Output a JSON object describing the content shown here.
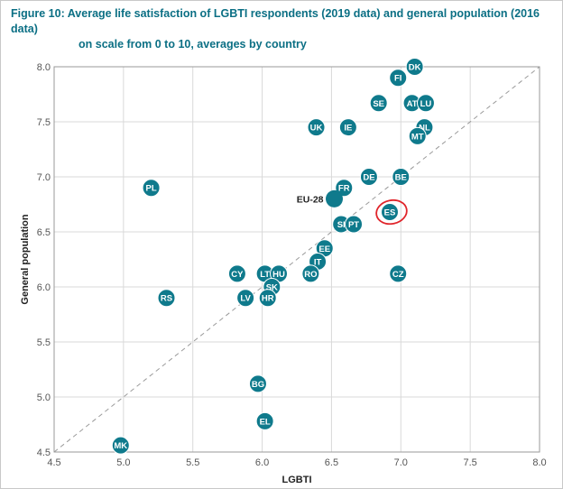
{
  "figure": {
    "title_line1": "Figure 10: Average life satisfaction of LGBTI respondents (2019 data) and general population (2016 data)",
    "title_line2": "on scale from 0 to 10, averages by country"
  },
  "colors": {
    "point": "#0f7a8c",
    "highlight": "#e0242a",
    "title": "#0b6f84",
    "grid": "#d9d9d9"
  },
  "chart_data": {
    "type": "scatter",
    "xlabel": "LGBTI",
    "ylabel": "General population",
    "xlim": [
      4.5,
      8.0
    ],
    "ylim": [
      4.5,
      8.0
    ],
    "xticks": [
      "4.5",
      "5.0",
      "5.5",
      "6.0",
      "6.5",
      "7.0",
      "7.5",
      "8.0"
    ],
    "yticks": [
      "4.5",
      "5.0",
      "5.5",
      "6.0",
      "6.5",
      "7.0",
      "7.5",
      "8.0"
    ],
    "grid": true,
    "reference_line": "y = x (dashed)",
    "points": [
      {
        "label": "DK",
        "x": 7.1,
        "y": 8.0
      },
      {
        "label": "FI",
        "x": 6.98,
        "y": 7.9
      },
      {
        "label": "SE",
        "x": 6.84,
        "y": 7.67
      },
      {
        "label": "AT",
        "x": 7.08,
        "y": 7.67
      },
      {
        "label": "LU",
        "x": 7.18,
        "y": 7.67
      },
      {
        "label": "UK",
        "x": 6.39,
        "y": 7.45
      },
      {
        "label": "IE",
        "x": 6.62,
        "y": 7.45
      },
      {
        "label": "NL",
        "x": 7.17,
        "y": 7.45
      },
      {
        "label": "MT",
        "x": 7.12,
        "y": 7.37
      },
      {
        "label": "DE",
        "x": 6.77,
        "y": 7.0
      },
      {
        "label": "BE",
        "x": 7.0,
        "y": 7.0
      },
      {
        "label": "FR",
        "x": 6.59,
        "y": 6.9
      },
      {
        "label": "EU-28",
        "x": 6.52,
        "y": 6.8
      },
      {
        "label": "PL",
        "x": 5.2,
        "y": 6.9
      },
      {
        "label": "ES",
        "x": 6.92,
        "y": 6.68,
        "highlight": true
      },
      {
        "label": "SI",
        "x": 6.57,
        "y": 6.57
      },
      {
        "label": "PT",
        "x": 6.66,
        "y": 6.57
      },
      {
        "label": "EE",
        "x": 6.45,
        "y": 6.35
      },
      {
        "label": "IT",
        "x": 6.4,
        "y": 6.23
      },
      {
        "label": "RO",
        "x": 6.35,
        "y": 6.12
      },
      {
        "label": "CY",
        "x": 5.82,
        "y": 6.12
      },
      {
        "label": "LT",
        "x": 6.02,
        "y": 6.12
      },
      {
        "label": "HU",
        "x": 6.12,
        "y": 6.12
      },
      {
        "label": "CZ",
        "x": 6.98,
        "y": 6.12
      },
      {
        "label": "SK",
        "x": 6.07,
        "y": 6.0
      },
      {
        "label": "RS",
        "x": 5.31,
        "y": 5.9
      },
      {
        "label": "LV",
        "x": 5.88,
        "y": 5.9
      },
      {
        "label": "HR",
        "x": 6.04,
        "y": 5.9
      },
      {
        "label": "BG",
        "x": 5.97,
        "y": 5.12
      },
      {
        "label": "EL",
        "x": 6.02,
        "y": 4.78
      },
      {
        "label": "MK",
        "x": 4.98,
        "y": 4.56
      }
    ]
  }
}
